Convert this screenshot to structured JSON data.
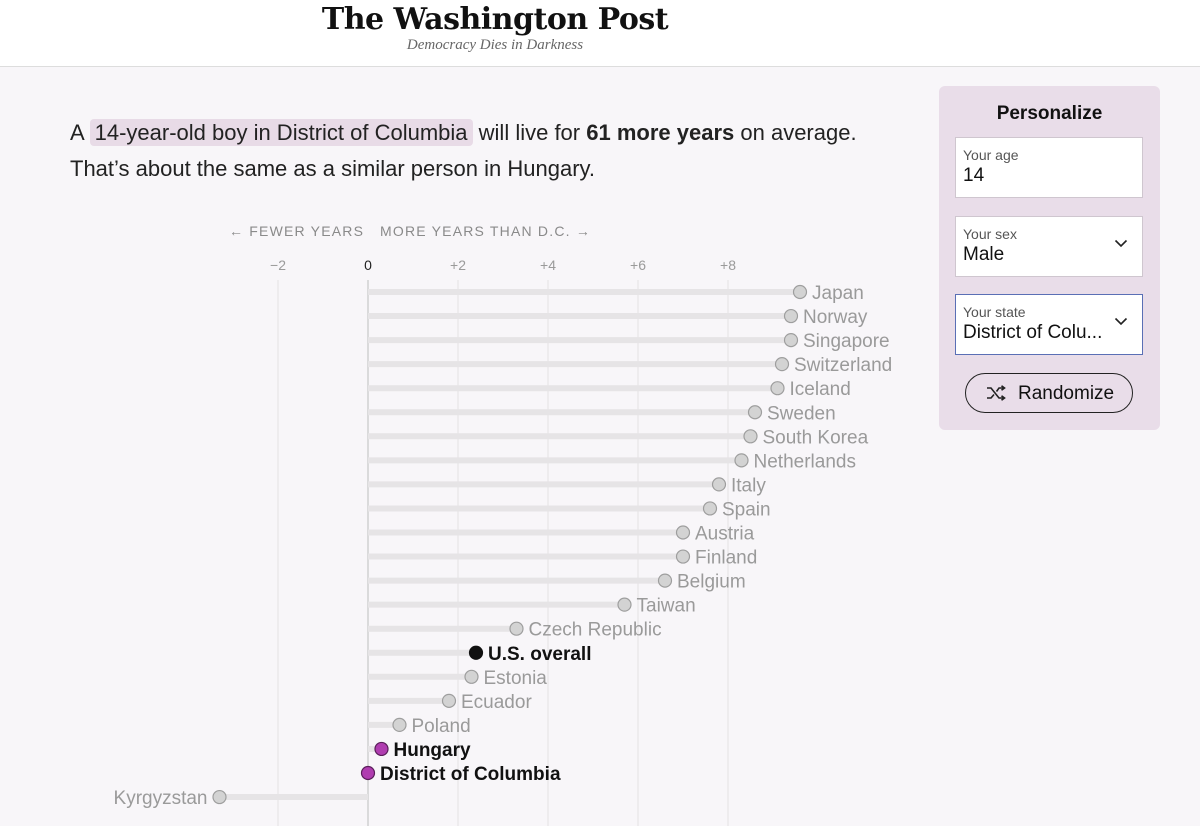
{
  "masthead": {
    "logo": "The Washington Post",
    "tagline": "Democracy Dies in Darkness"
  },
  "headline": {
    "prefix": "A",
    "person": "14-year-old boy in District of Columbia",
    "middle": "will live for",
    "emphasis": "61 more years",
    "suffix": "on average.",
    "line2": "That’s about the same as a similar person in Hungary."
  },
  "personalize": {
    "title": "Personalize",
    "age": {
      "label": "Your age",
      "value": "14"
    },
    "sex": {
      "label": "Your sex",
      "value": "Male"
    },
    "state": {
      "label": "Your state",
      "value": "District of Colu..."
    },
    "randomize_label": "Randomize",
    "icons": {
      "dropdown": "chevron-down-icon",
      "shuffle": "shuffle-icon"
    }
  },
  "axis_captions": {
    "left": "← FEWER YEARS",
    "right": "MORE YEARS THAN D.C. →"
  },
  "colors": {
    "highlight": "#b03db0",
    "neutral_dot": "#d3d3d3",
    "bar": "#e6e4e6",
    "us_dot": "#111111"
  },
  "chart_data": {
    "type": "lollipop",
    "xlabel": "MORE YEARS THAN D.C.",
    "xlim": [
      -3.3,
      10
    ],
    "ticks": [
      -2,
      0,
      2,
      4,
      6,
      8
    ],
    "tick_labels": [
      "−2",
      "0",
      "+2",
      "+4",
      "+6",
      "+8"
    ],
    "points": [
      {
        "label": "Japan",
        "value": 9.6,
        "kind": "other"
      },
      {
        "label": "Norway",
        "value": 9.4,
        "kind": "other"
      },
      {
        "label": "Singapore",
        "value": 9.4,
        "kind": "other"
      },
      {
        "label": "Switzerland",
        "value": 9.2,
        "kind": "other"
      },
      {
        "label": "Iceland",
        "value": 9.1,
        "kind": "other"
      },
      {
        "label": "Sweden",
        "value": 8.6,
        "kind": "other"
      },
      {
        "label": "South Korea",
        "value": 8.5,
        "kind": "other"
      },
      {
        "label": "Netherlands",
        "value": 8.3,
        "kind": "other"
      },
      {
        "label": "Italy",
        "value": 7.8,
        "kind": "other"
      },
      {
        "label": "Spain",
        "value": 7.6,
        "kind": "other"
      },
      {
        "label": "Austria",
        "value": 7.0,
        "kind": "other"
      },
      {
        "label": "Finland",
        "value": 7.0,
        "kind": "other"
      },
      {
        "label": "Belgium",
        "value": 6.6,
        "kind": "other"
      },
      {
        "label": "Taiwan",
        "value": 5.7,
        "kind": "other"
      },
      {
        "label": "Czech Republic",
        "value": 3.3,
        "kind": "other"
      },
      {
        "label": "U.S. overall",
        "value": 2.4,
        "kind": "us"
      },
      {
        "label": "Estonia",
        "value": 2.3,
        "kind": "other"
      },
      {
        "label": "Ecuador",
        "value": 1.8,
        "kind": "other"
      },
      {
        "label": "Poland",
        "value": 0.7,
        "kind": "other"
      },
      {
        "label": "Hungary",
        "value": 0.3,
        "kind": "match"
      },
      {
        "label": "District of Columbia",
        "value": 0.0,
        "kind": "self"
      },
      {
        "label": "Kyrgyzstan",
        "value": -3.3,
        "kind": "other"
      }
    ]
  }
}
